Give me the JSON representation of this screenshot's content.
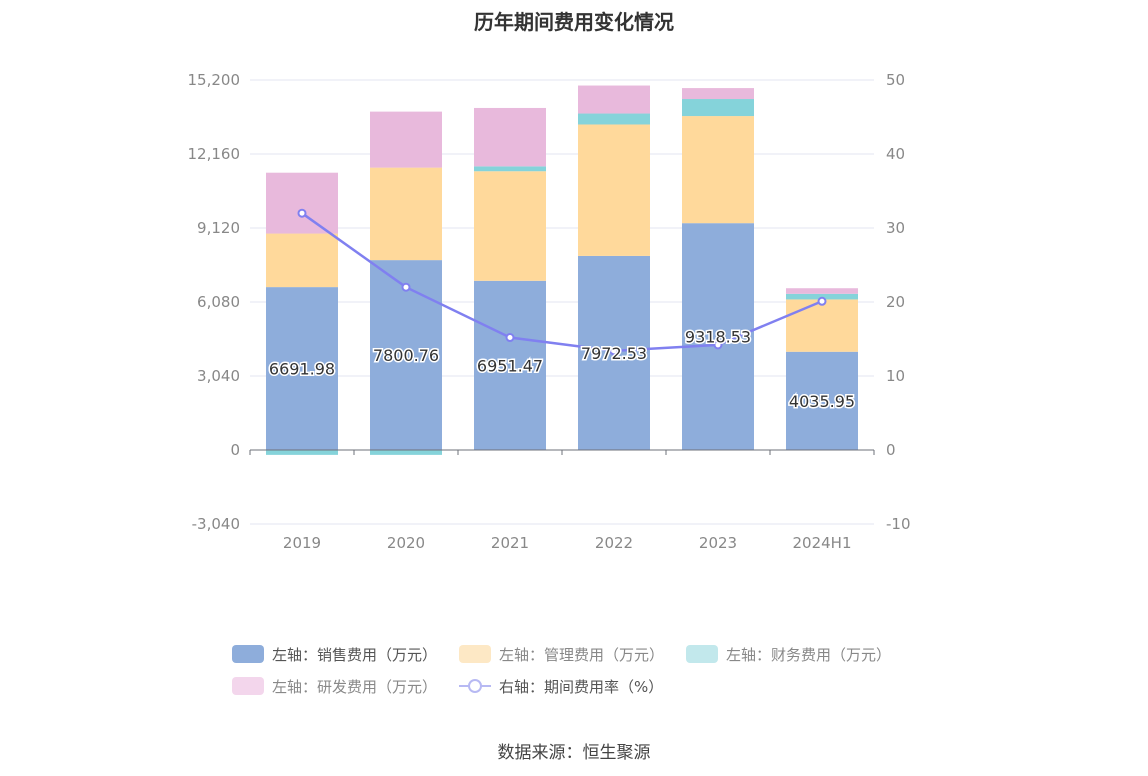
{
  "chart_data": {
    "type": "bar",
    "stacked": true,
    "title": "历年期间费用变化情况",
    "categories": [
      "2019",
      "2020",
      "2021",
      "2022",
      "2023",
      "2024H1"
    ],
    "left_axis": {
      "min": -3040,
      "max": 15200,
      "ticks": [
        -3040,
        0,
        3040,
        6080,
        9120,
        12160,
        15200
      ],
      "tick_labels": [
        "-3,040",
        "0",
        "3,040",
        "6,080",
        "9,120",
        "12,160",
        "15,200"
      ]
    },
    "right_axis": {
      "min": -10,
      "max": 50,
      "ticks": [
        -10,
        0,
        10,
        20,
        30,
        40,
        50
      ],
      "tick_labels": [
        "-10",
        "0",
        "10",
        "20",
        "30",
        "40",
        "50"
      ]
    },
    "grid": true,
    "legend_position": "bottom",
    "series": [
      {
        "name": "左轴：销售费用（万元）",
        "axis": "left",
        "color": "#8eaddb",
        "values": [
          6691.98,
          7800.76,
          6951.47,
          7972.53,
          9318.53,
          4035.95
        ],
        "labels": [
          "6691.98",
          "7800.76",
          "6951.47",
          "7972.53",
          "9318.53",
          "4035.95"
        ]
      },
      {
        "name": "左轴：管理费用（万元）",
        "axis": "left",
        "color": "#ffd99b",
        "values": [
          2200,
          3800,
          4500,
          5400,
          4400,
          2150
        ]
      },
      {
        "name": "左轴：财务费用（万元）",
        "axis": "left",
        "color": "#85d3da",
        "values": [
          -200,
          -200,
          200,
          450,
          700,
          230
        ]
      },
      {
        "name": "左轴：研发费用（万元）",
        "axis": "left",
        "color": "#e8b9dc",
        "values": [
          2500,
          2300,
          2400,
          1150,
          450,
          230
        ]
      },
      {
        "name": "右轴：期间费用率（%）",
        "axis": "right",
        "type": "line",
        "color": "#8080f0",
        "values": [
          32,
          22,
          15.2,
          13.4,
          14.2,
          20.1
        ]
      }
    ]
  },
  "legend": {
    "items": [
      {
        "label": "左轴：销售费用（万元）",
        "color": "#8eaddb"
      },
      {
        "label": "左轴：管理费用（万元）",
        "color": "#fde8c5"
      },
      {
        "label": "左轴：财务费用（万元）",
        "color": "#c2e8ec"
      },
      {
        "label": "左轴：研发费用（万元）",
        "color": "#f3d6ec"
      },
      {
        "label": "右轴：期间费用率（%）",
        "color": "#b7b9f3"
      }
    ]
  },
  "source": "数据来源：恒生聚源"
}
